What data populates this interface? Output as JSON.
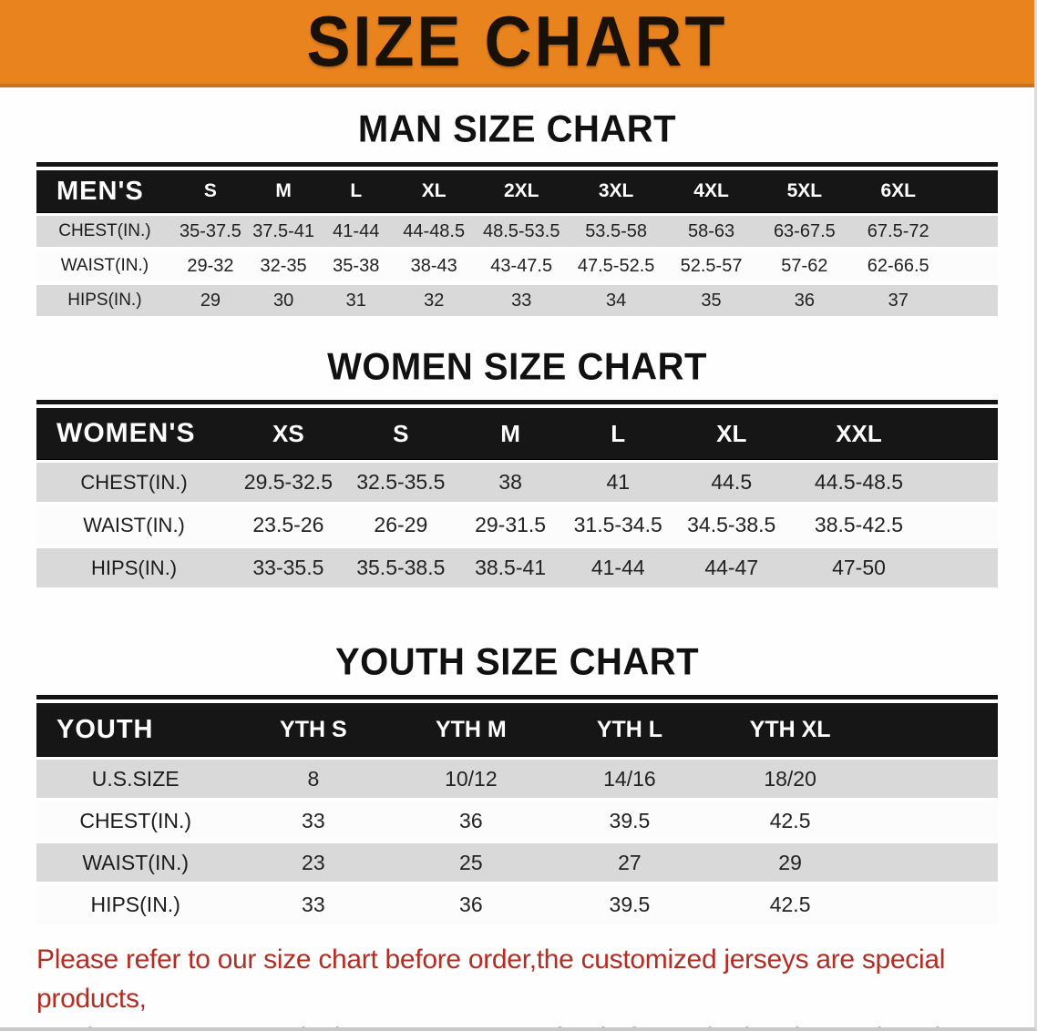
{
  "banner": {
    "title": "SIZE CHART"
  },
  "men": {
    "heading": "MAN SIZE CHART",
    "table": {
      "corner_label": "MEN'S",
      "columns": [
        "S",
        "M",
        "L",
        "XL",
        "2XL",
        "3XL",
        "4XL",
        "5XL",
        "6XL"
      ],
      "rows": [
        {
          "label": "CHEST(IN.)",
          "values": [
            "35-37.5",
            "37.5-41",
            "41-44",
            "44-48.5",
            "48.5-53.5",
            "53.5-58",
            "58-63",
            "63-67.5",
            "67.5-72"
          ]
        },
        {
          "label": "WAIST(IN.)",
          "values": [
            "29-32",
            "32-35",
            "35-38",
            "38-43",
            "43-47.5",
            "47.5-52.5",
            "52.5-57",
            "57-62",
            "62-66.5"
          ]
        },
        {
          "label": "HIPS(IN.)",
          "values": [
            "29",
            "30",
            "31",
            "32",
            "33",
            "34",
            "35",
            "36",
            "37"
          ]
        }
      ]
    }
  },
  "women": {
    "heading": "WOMEN SIZE CHART",
    "table": {
      "corner_label": "WOMEN'S",
      "columns": [
        "XS",
        "S",
        "M",
        "L",
        "XL",
        "XXL"
      ],
      "rows": [
        {
          "label": "CHEST(IN.)",
          "values": [
            "29.5-32.5",
            "32.5-35.5",
            "38",
            "41",
            "44.5",
            "44.5-48.5"
          ]
        },
        {
          "label": "WAIST(IN.)",
          "values": [
            "23.5-26",
            "26-29",
            "29-31.5",
            "31.5-34.5",
            "34.5-38.5",
            "38.5-42.5"
          ]
        },
        {
          "label": "HIPS(IN.)",
          "values": [
            "33-35.5",
            "35.5-38.5",
            "38.5-41",
            "41-44",
            "44-47",
            "47-50"
          ]
        }
      ]
    }
  },
  "youth": {
    "heading": "YOUTH SIZE CHART",
    "table": {
      "corner_label": "YOUTH",
      "columns": [
        "YTH S",
        "YTH M",
        "YTH L",
        "YTH XL"
      ],
      "rows": [
        {
          "label": "U.S.SIZE",
          "values": [
            "8",
            "10/12",
            "14/16",
            "18/20"
          ]
        },
        {
          "label": "CHEST(IN.)",
          "values": [
            "33",
            "36",
            "39.5",
            "42.5"
          ]
        },
        {
          "label": "WAIST(IN.)",
          "values": [
            "23",
            "25",
            "27",
            "29"
          ]
        },
        {
          "label": "HIPS(IN.)",
          "values": [
            "33",
            "36",
            "39.5",
            "42.5"
          ]
        }
      ]
    }
  },
  "footer": {
    "line1": "Please refer to our size chart before order,the customized jerseys are special products,",
    "line2": "we don't accept cancel, change, teturn or refund after order has been placed!"
  },
  "colors": {
    "banner_bg": "#E8831E",
    "banner_edge": "#C9721A",
    "header_bar": "#161616",
    "row_gray": "#D9D9D9",
    "row_white": "#FCFCFC",
    "footer_red": "#B02E24",
    "heading_black": "#111111"
  }
}
